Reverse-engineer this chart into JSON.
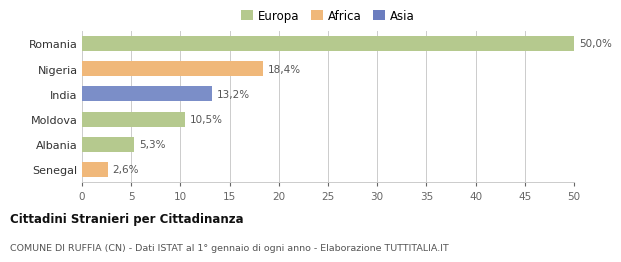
{
  "categories": [
    "Romania",
    "Nigeria",
    "India",
    "Moldova",
    "Albania",
    "Senegal"
  ],
  "values": [
    50.0,
    18.4,
    13.2,
    10.5,
    5.3,
    2.6
  ],
  "labels": [
    "50,0%",
    "18,4%",
    "13,2%",
    "10,5%",
    "5,3%",
    "2,6%"
  ],
  "colors": [
    "#b5c98e",
    "#f0b87a",
    "#7b8ec8",
    "#b5c98e",
    "#b5c98e",
    "#f0b87a"
  ],
  "legend_items": [
    {
      "label": "Europa",
      "color": "#b5c98e"
    },
    {
      "label": "Africa",
      "color": "#f0b87a"
    },
    {
      "label": "Asia",
      "color": "#6b7dbf"
    }
  ],
  "xlim": [
    0,
    50
  ],
  "xticks": [
    0,
    5,
    10,
    15,
    20,
    25,
    30,
    35,
    40,
    45,
    50
  ],
  "title": "Cittadini Stranieri per Cittadinanza",
  "subtitle": "COMUNE DI RUFFIA (CN) - Dati ISTAT al 1° gennaio di ogni anno - Elaborazione TUTTITALIA.IT",
  "background_color": "#ffffff",
  "grid_color": "#cccccc",
  "bar_height": 0.6
}
